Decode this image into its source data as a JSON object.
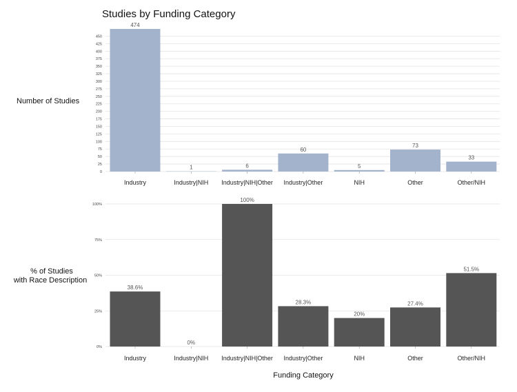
{
  "chart_data": [
    {
      "type": "bar",
      "title": "Studies by Funding Category",
      "ylabel": "Number of Studies",
      "xlabel": "",
      "categories": [
        "Industry",
        "Industry|NIH",
        "Industry|NIH|Other",
        "Industry|Other",
        "NIH",
        "Other",
        "Other/NIH"
      ],
      "values": [
        474,
        1,
        6,
        60,
        5,
        73,
        33
      ],
      "data_labels": [
        "474",
        "1",
        "6",
        "60",
        "5",
        "73",
        "33"
      ],
      "yticks": [
        "0",
        "25",
        "50",
        "75",
        "100",
        "125",
        "150",
        "175",
        "200",
        "225",
        "250",
        "275",
        "300",
        "325",
        "350",
        "375",
        "400",
        "425",
        "450"
      ],
      "ylim": [
        0,
        474
      ],
      "bar_color": "#a3b3cc",
      "grid": true
    },
    {
      "type": "bar",
      "title": "",
      "ylabel": "% of Studies with Race Description",
      "ylabel_lines": [
        "% of Studies",
        "with Race Description"
      ],
      "xlabel": "Funding Category",
      "categories": [
        "Industry",
        "Industry|NIH",
        "Industry|NIH|Other",
        "Industry|Other",
        "NIH",
        "Other",
        "Other/NIH"
      ],
      "values": [
        38.6,
        0,
        100,
        28.3,
        20,
        27.4,
        51.5
      ],
      "data_labels": [
        "38.6%",
        "0%",
        "100%",
        "28.3%",
        "20%",
        "27.4%",
        "51.5%"
      ],
      "yticks": [
        "0%",
        "25%",
        "50%",
        "75%",
        "100%"
      ],
      "ylim": [
        0,
        100
      ],
      "bar_color": "#555555",
      "grid": true
    }
  ]
}
